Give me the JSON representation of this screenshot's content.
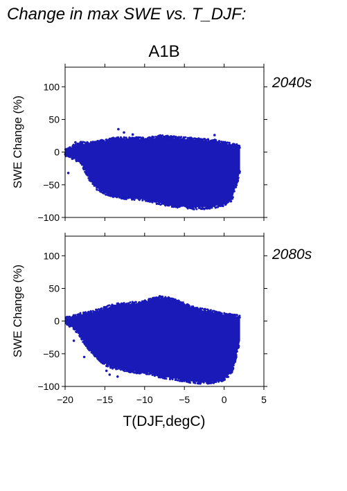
{
  "header": {
    "title": "Change in max SWE vs. T_DJF:",
    "scenario": "A1B"
  },
  "colors": {
    "points": "#1a1ab8",
    "period_label": "#2020a0",
    "axis": "#000000"
  },
  "chart_data": [
    {
      "type": "scatter",
      "period": "2040s",
      "xlabel": "",
      "ylabel": "SWE Change (%)",
      "xlim": [
        -20,
        5
      ],
      "ylim": [
        -100,
        130
      ],
      "xticks": [
        -20,
        -15,
        -10,
        -5,
        0,
        5
      ],
      "yticks": [
        -100,
        -50,
        0,
        50,
        100
      ],
      "show_x_tick_labels": false,
      "grid": false,
      "envelope": {
        "x": [
          -20,
          -19,
          -18,
          -17,
          -16,
          -15,
          -14,
          -13,
          -12,
          -11,
          -10,
          -9,
          -8,
          -7,
          -6,
          -5,
          -4,
          -3,
          -2,
          -1,
          0,
          1,
          2
        ],
        "upper": [
          2,
          8,
          13,
          12,
          14,
          17,
          19,
          20,
          20,
          20,
          19,
          21,
          23,
          22,
          21,
          20,
          19,
          18,
          17,
          16,
          13,
          11,
          8
        ],
        "lower": [
          -3,
          -8,
          -15,
          -40,
          -55,
          -62,
          -66,
          -68,
          -70,
          -70,
          -72,
          -75,
          -78,
          -80,
          -82,
          -82,
          -85,
          -84,
          -84,
          -82,
          -80,
          -72,
          -30
        ]
      },
      "outliers": [
        {
          "x": -13.3,
          "y": 35
        },
        {
          "x": -12.6,
          "y": 30
        },
        {
          "x": -11.5,
          "y": 27
        },
        {
          "x": -1.2,
          "y": 26
        },
        {
          "x": -18.7,
          "y": 15
        },
        {
          "x": -19.6,
          "y": -32
        },
        {
          "x": -2.5,
          "y": -87
        },
        {
          "x": -6.5,
          "y": -83
        }
      ]
    },
    {
      "type": "scatter",
      "period": "2080s",
      "xlabel": "T(DJF,degC)",
      "ylabel": "SWE Change (%)",
      "xlim": [
        -20,
        5
      ],
      "ylim": [
        -100,
        130
      ],
      "xticks": [
        -20,
        -15,
        -10,
        -5,
        0,
        5
      ],
      "yticks": [
        -100,
        -50,
        0,
        50,
        100
      ],
      "show_x_tick_labels": true,
      "grid": false,
      "envelope": {
        "x": [
          -20,
          -19,
          -18,
          -17,
          -16,
          -15,
          -14,
          -13,
          -12,
          -11,
          -10,
          -9,
          -8,
          -7,
          -6,
          -5,
          -4,
          -3,
          -2,
          -1,
          0,
          1,
          2
        ],
        "upper": [
          3,
          6,
          10,
          12,
          15,
          19,
          23,
          25,
          26,
          27,
          29,
          33,
          35,
          34,
          30,
          25,
          20,
          17,
          15,
          12,
          10,
          8,
          6
        ],
        "lower": [
          -3,
          -8,
          -25,
          -42,
          -55,
          -65,
          -70,
          -72,
          -75,
          -77,
          -78,
          -80,
          -84,
          -86,
          -88,
          -90,
          -92,
          -93,
          -93,
          -92,
          -88,
          -78,
          -30
        ]
      },
      "outliers": [
        {
          "x": -18.9,
          "y": -30
        },
        {
          "x": -17.6,
          "y": -55
        },
        {
          "x": -14.8,
          "y": -76
        },
        {
          "x": -14.4,
          "y": -82
        },
        {
          "x": -13.4,
          "y": -85
        },
        {
          "x": -1.2,
          "y": -93
        },
        {
          "x": -13.7,
          "y": 19
        },
        {
          "x": -8.1,
          "y": 38
        }
      ]
    }
  ]
}
